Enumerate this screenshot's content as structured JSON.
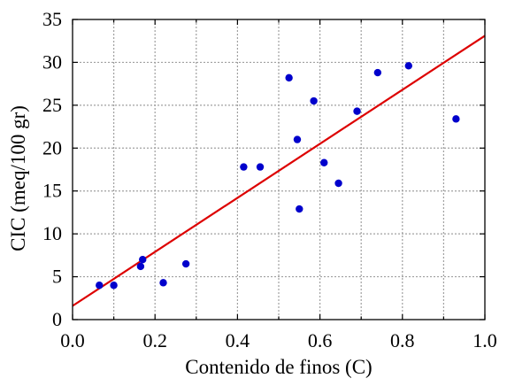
{
  "chart_data": {
    "type": "scatter",
    "title": "",
    "xlabel": "Contenido de finos (C)",
    "ylabel": "CIC (meq/100 gr)",
    "xlim": [
      0.0,
      1.0
    ],
    "ylim": [
      0,
      35
    ],
    "x_ticks": [
      0.0,
      0.2,
      0.4,
      0.6,
      0.8,
      1.0
    ],
    "x_tick_labels": [
      "0.0",
      "0.2",
      "0.4",
      "0.6",
      "0.8",
      "1.0"
    ],
    "x_minor_ticks": [
      0.1,
      0.3,
      0.5,
      0.7,
      0.9
    ],
    "y_ticks": [
      0,
      5,
      10,
      15,
      20,
      25,
      30,
      35
    ],
    "y_tick_labels": [
      "0",
      "5",
      "10",
      "15",
      "20",
      "25",
      "30",
      "35"
    ],
    "grid": true,
    "grid_style": "dotted",
    "colors": {
      "points": "#0000cc",
      "fit_line": "#dd0000",
      "grid": "#a0a0a0",
      "axes": "#000000"
    },
    "series": [
      {
        "kind": "scatter",
        "points": [
          {
            "x": 0.065,
            "y": 4.0
          },
          {
            "x": 0.1,
            "y": 4.0
          },
          {
            "x": 0.165,
            "y": 6.2
          },
          {
            "x": 0.17,
            "y": 7.0
          },
          {
            "x": 0.22,
            "y": 4.3
          },
          {
            "x": 0.275,
            "y": 6.5
          },
          {
            "x": 0.415,
            "y": 17.8
          },
          {
            "x": 0.455,
            "y": 17.8
          },
          {
            "x": 0.525,
            "y": 28.2
          },
          {
            "x": 0.545,
            "y": 21.0
          },
          {
            "x": 0.55,
            "y": 12.9
          },
          {
            "x": 0.585,
            "y": 25.5
          },
          {
            "x": 0.61,
            "y": 18.3
          },
          {
            "x": 0.645,
            "y": 15.9
          },
          {
            "x": 0.69,
            "y": 24.3
          },
          {
            "x": 0.74,
            "y": 28.8
          },
          {
            "x": 0.815,
            "y": 29.6
          },
          {
            "x": 0.93,
            "y": 23.4
          }
        ]
      },
      {
        "kind": "line",
        "points": [
          {
            "x": 0.0,
            "y": 1.6
          },
          {
            "x": 1.0,
            "y": 33.1
          }
        ]
      }
    ]
  }
}
